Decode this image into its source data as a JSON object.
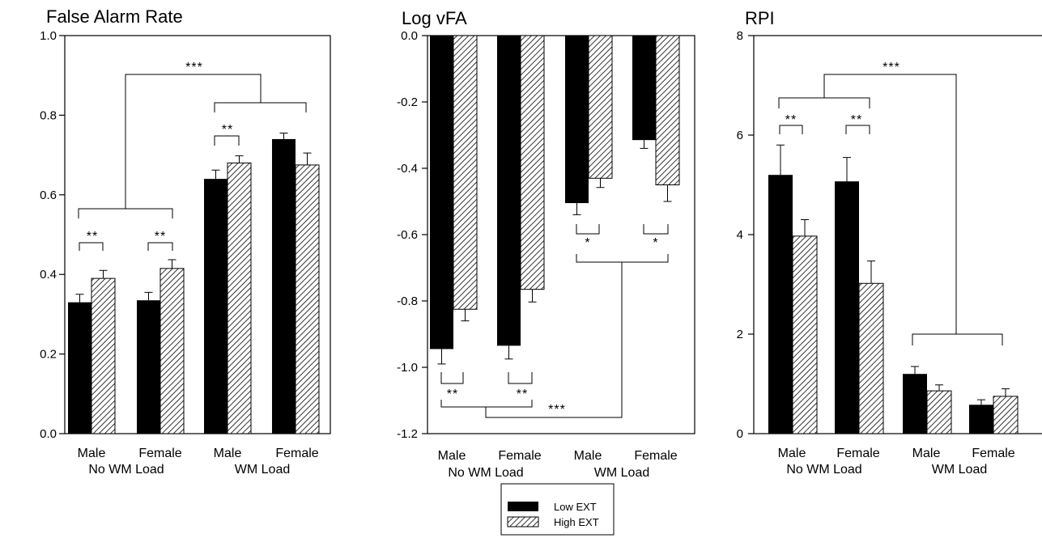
{
  "legend": {
    "entries": [
      {
        "label": "Low EXT",
        "pattern": "solid"
      },
      {
        "label": "High EXT",
        "pattern": "hatch"
      }
    ]
  },
  "chart_data": [
    {
      "id": "far",
      "type": "bar",
      "title": "False Alarm Rate",
      "categories": [
        "Male",
        "Female",
        "Male",
        "Female"
      ],
      "groups": [
        "No WM Load",
        "WM Load"
      ],
      "ylim": [
        0.0,
        1.0
      ],
      "yticks": [
        0.0,
        0.2,
        0.4,
        0.6,
        0.8,
        1.0
      ],
      "ytick_labels": [
        "0.0",
        "0.2",
        "0.4",
        "0.6",
        "0.8",
        "1.0"
      ],
      "series": [
        {
          "name": "Low EXT",
          "values": [
            0.33,
            0.335,
            0.64,
            0.74
          ],
          "errors": [
            0.02,
            0.02,
            0.022,
            0.015
          ]
        },
        {
          "name": "High EXT",
          "values": [
            0.39,
            0.415,
            0.68,
            0.675
          ],
          "errors": [
            0.02,
            0.022,
            0.018,
            0.03
          ]
        }
      ],
      "annotations": [
        {
          "text": "**",
          "kind": "pair",
          "cat": 0
        },
        {
          "text": "**",
          "kind": "pair",
          "cat": 1
        },
        {
          "text": "**",
          "kind": "pair",
          "cat": 2
        },
        {
          "text": "***",
          "kind": "groups"
        }
      ]
    },
    {
      "id": "lvfa",
      "type": "bar",
      "title": "Log vFA",
      "categories": [
        "Male",
        "Female",
        "Male",
        "Female"
      ],
      "groups": [
        "No WM Load",
        "WM Load"
      ],
      "ylim": [
        -1.2,
        0.0
      ],
      "yticks": [
        0.0,
        -0.2,
        -0.4,
        -0.6,
        -0.8,
        -1.0,
        -1.2
      ],
      "ytick_labels": [
        "0.0",
        "-0.2",
        "-0.4",
        "-0.6",
        "-0.8",
        "-1.0",
        "-1.2"
      ],
      "series": [
        {
          "name": "Low EXT",
          "values": [
            -0.945,
            -0.935,
            -0.505,
            -0.315
          ],
          "errors": [
            0.045,
            0.04,
            0.035,
            0.025
          ]
        },
        {
          "name": "High EXT",
          "values": [
            -0.825,
            -0.765,
            -0.43,
            -0.45
          ],
          "errors": [
            0.035,
            0.038,
            0.028,
            0.05
          ]
        }
      ],
      "annotations": [
        {
          "text": "**",
          "kind": "pair",
          "cat": 0
        },
        {
          "text": "**",
          "kind": "pair",
          "cat": 1
        },
        {
          "text": "*",
          "kind": "pair",
          "cat": 2
        },
        {
          "text": "*",
          "kind": "pair",
          "cat": 3
        },
        {
          "text": "***",
          "kind": "groups"
        }
      ]
    },
    {
      "id": "rpi",
      "type": "bar",
      "title": "RPI",
      "categories": [
        "Male",
        "Female",
        "Male",
        "Female"
      ],
      "groups": [
        "No WM Load",
        "WM Load"
      ],
      "ylim": [
        0,
        8
      ],
      "yticks": [
        0,
        2,
        4,
        6,
        8
      ],
      "ytick_labels": [
        "0",
        "2",
        "4",
        "6",
        "8"
      ],
      "series": [
        {
          "name": "Low EXT",
          "values": [
            5.2,
            5.07,
            1.2,
            0.58
          ],
          "errors": [
            0.6,
            0.48,
            0.15,
            0.1
          ]
        },
        {
          "name": "High EXT",
          "values": [
            3.97,
            3.02,
            0.86,
            0.75
          ],
          "errors": [
            0.33,
            0.45,
            0.12,
            0.15
          ]
        }
      ],
      "annotations": [
        {
          "text": "**",
          "kind": "pair",
          "cat": 0
        },
        {
          "text": "**",
          "kind": "pair",
          "cat": 1
        },
        {
          "text": "***",
          "kind": "groups"
        }
      ]
    }
  ]
}
